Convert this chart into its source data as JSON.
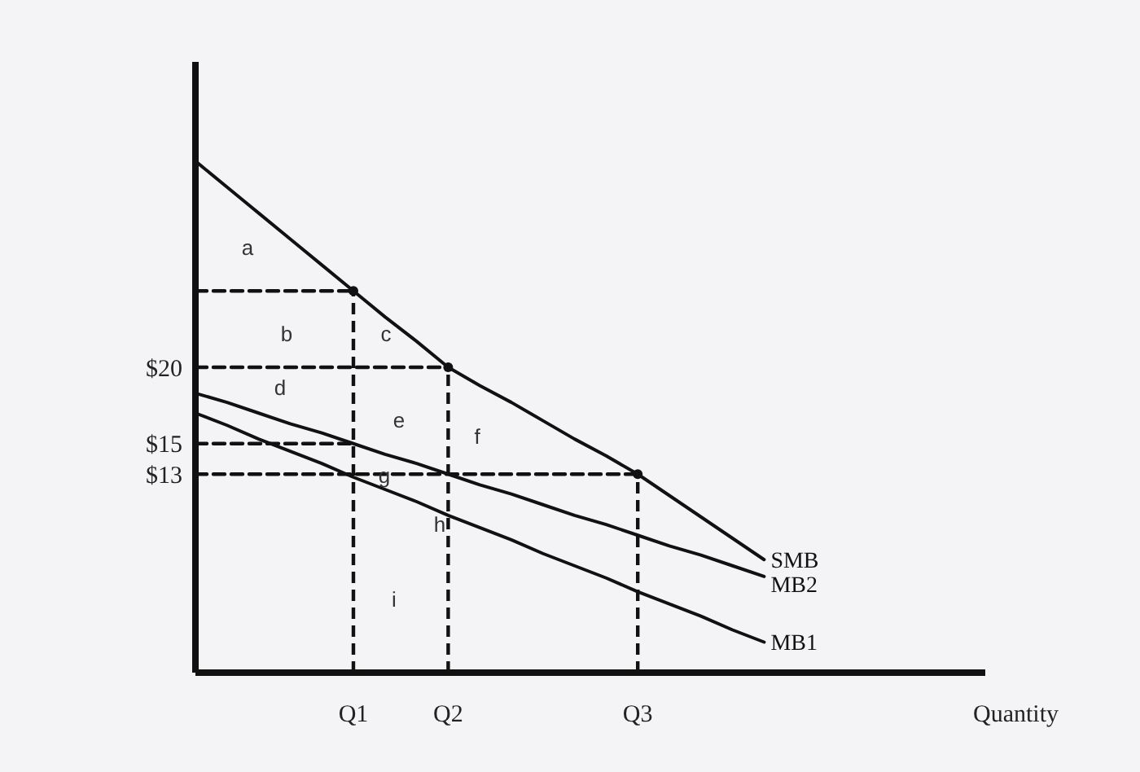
{
  "chart_data": {
    "type": "line",
    "xlabel": "Quantity",
    "ylim": [
      0,
      40
    ],
    "categories": [
      null,
      null,
      null,
      null,
      null,
      "Q1",
      null,
      null,
      "Q2",
      null,
      null,
      null,
      null,
      null,
      "Q3",
      null,
      null,
      null,
      null,
      null,
      null,
      null,
      null,
      null,
      null,
      null
    ],
    "yticks": [
      {
        "value": 20,
        "label": "$20"
      },
      {
        "value": 15,
        "label": "$15"
      },
      {
        "value": 13,
        "label": "$13"
      }
    ],
    "series": [
      {
        "color": "#111111",
        "line_style": "dashed",
        "values": [
          25,
          25,
          25,
          25,
          25,
          25,
          null,
          null,
          null,
          null,
          null,
          null,
          null,
          null,
          null,
          null,
          null,
          null,
          null,
          null,
          null,
          null,
          null,
          null,
          null,
          null
        ]
      },
      {
        "color": "#111111",
        "line_style": "dashed",
        "values": [
          20,
          20,
          20,
          20,
          20,
          20,
          20,
          20,
          20,
          null,
          null,
          null,
          null,
          null,
          null,
          null,
          null,
          null,
          null,
          null,
          null,
          null,
          null,
          null,
          null,
          null
        ]
      },
      {
        "color": "#111111",
        "line_style": "dashed",
        "values": [
          15,
          15,
          15,
          15,
          15,
          15,
          null,
          null,
          null,
          null,
          null,
          null,
          null,
          null,
          null,
          null,
          null,
          null,
          null,
          null,
          null,
          null,
          null,
          null,
          null,
          null
        ]
      },
      {
        "color": "#111111",
        "line_style": "dashed",
        "values": [
          13,
          13,
          13,
          13,
          13,
          13,
          13,
          13,
          13,
          13,
          13,
          13,
          13,
          13,
          13,
          null,
          null,
          null,
          null,
          null,
          null,
          null,
          null,
          null,
          null,
          null
        ]
      },
      {
        "type": "lollipop",
        "marker": "circle",
        "color": "#111111",
        "line_style": "dashed",
        "values": [
          null,
          null,
          null,
          null,
          null,
          25,
          null,
          null,
          20,
          null,
          null,
          null,
          null,
          null,
          13,
          null,
          null,
          null,
          null,
          null,
          null,
          null,
          null,
          null,
          null,
          null
        ]
      },
      {
        "name": "SMB",
        "color": "#111111",
        "values": [
          33.5,
          31.8,
          30.1,
          28.4,
          26.7,
          25,
          23.3,
          21.7,
          20,
          18.8,
          17.7,
          16.5,
          15.3,
          14.2,
          13,
          11.6,
          10.2,
          8.8,
          7.4,
          null,
          null,
          null,
          null,
          null,
          null,
          null
        ]
      },
      {
        "name": "MB2",
        "color": "#111111",
        "values": [
          18.3,
          17.7,
          17,
          16.3,
          15.7,
          15,
          14.3,
          13.7,
          13,
          12.3,
          11.7,
          11,
          10.3,
          9.7,
          9,
          8.3,
          7.7,
          7,
          6.3,
          null,
          null,
          null,
          null,
          null,
          null,
          null
        ]
      },
      {
        "name": "MB1",
        "color": "#111111",
        "values": [
          17,
          16.2,
          15.3,
          14.5,
          13.7,
          12.8,
          12,
          11.2,
          10.3,
          9.5,
          8.7,
          7.8,
          7,
          6.2,
          5.3,
          4.5,
          3.7,
          2.8,
          2,
          null,
          null,
          null,
          null,
          null,
          null,
          null
        ]
      }
    ],
    "annotations": [
      "a",
      "b",
      "c",
      "d",
      "e",
      "f",
      "g",
      "h",
      "i"
    ]
  }
}
